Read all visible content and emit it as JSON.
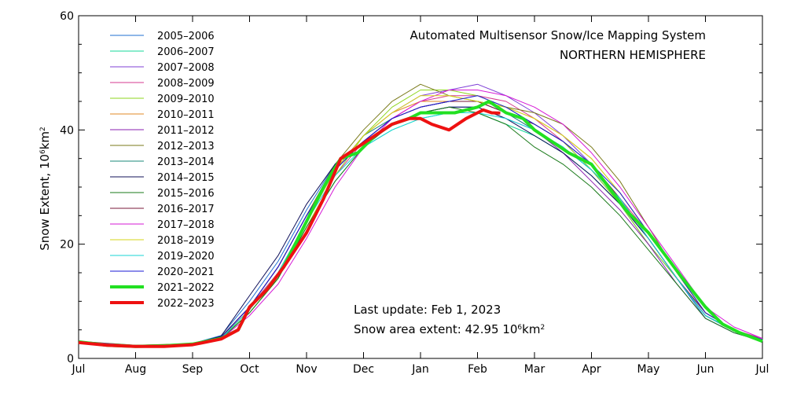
{
  "chart_data": {
    "type": "line",
    "title": "Automated  Multisensor Snow/Ice Mapping System",
    "subtitle": "NORTHERN HEMISPHERE",
    "ylabel_main": "Snow Extent, 10",
    "ylabel_sup": "6",
    "ylabel_unit": "km",
    "ylabel_unit_sup": "2",
    "ylim": [
      0,
      60
    ],
    "yticks": [
      0,
      20,
      40,
      60
    ],
    "xlim": [
      0,
      12
    ],
    "xtick_labels": [
      "Jul",
      "Aug",
      "Sep",
      "Oct",
      "Nov",
      "Dec",
      "Jan",
      "Feb",
      "Mar",
      "Apr",
      "May",
      "Jun",
      "Jul"
    ],
    "grid": false,
    "legend_placement": "top-left",
    "annotation_update": "Last update: Feb  1, 2023",
    "annotation_extent_prefix": "Snow area extent: 42.95 10",
    "annotation_extent_sup": "6",
    "annotation_extent_unit": "km",
    "annotation_extent_unit_sup": "2",
    "x_units": "months since Jul",
    "series": [
      {
        "name": "2005–2006",
        "color": "#1f6fd1",
        "width": 1,
        "x": [
          0,
          1,
          2,
          2.5,
          3,
          3.5,
          4,
          4.5,
          5,
          5.5,
          6,
          6.5,
          7,
          7.5,
          8,
          8.5,
          9,
          9.5,
          10,
          10.5,
          11,
          11.5,
          12
        ],
        "y": [
          2.8,
          2.2,
          2.6,
          4,
          10,
          17,
          26,
          34,
          38,
          41,
          43,
          44,
          44,
          42,
          40,
          37,
          33,
          27,
          20,
          14,
          7,
          4.5,
          3
        ]
      },
      {
        "name": "2006–2007",
        "color": "#16d89a",
        "width": 1,
        "x": [
          0,
          1,
          2,
          2.5,
          3,
          3.5,
          4,
          4.5,
          5,
          5.5,
          6,
          6.5,
          7,
          7.5,
          8,
          8.5,
          9,
          9.5,
          10,
          10.5,
          11,
          11.5,
          12
        ],
        "y": [
          3,
          2.3,
          2.5,
          3.5,
          8,
          14,
          23,
          31,
          37,
          40,
          42,
          43,
          43,
          41,
          39,
          36,
          32,
          27,
          21,
          14,
          7.5,
          5,
          3.2
        ]
      },
      {
        "name": "2007–2008",
        "color": "#7f3fd6",
        "width": 1,
        "x": [
          0,
          1,
          2,
          2.5,
          3,
          3.5,
          4,
          4.5,
          5,
          5.5,
          6,
          6.5,
          7,
          7.5,
          8,
          8.5,
          9,
          9.5,
          10,
          10.5,
          11,
          11.5,
          12
        ],
        "y": [
          2.9,
          2.2,
          2.4,
          3.6,
          9,
          16,
          25,
          33,
          39,
          43,
          46,
          47,
          48,
          46,
          43,
          39,
          34,
          28,
          21,
          14,
          8,
          5,
          3.3
        ]
      },
      {
        "name": "2008–2009",
        "color": "#d6388f",
        "width": 1,
        "x": [
          0,
          1,
          2,
          2.5,
          3,
          3.5,
          4,
          4.5,
          5,
          5.5,
          6,
          6.5,
          7,
          7.5,
          8,
          8.5,
          9,
          9.5,
          10,
          10.5,
          11,
          11.5,
          12
        ],
        "y": [
          3,
          2.2,
          2.5,
          3.8,
          9,
          15,
          24,
          32,
          38,
          42,
          45,
          46,
          46,
          45,
          42,
          38,
          33,
          28,
          22,
          15,
          8,
          5,
          3.5
        ]
      },
      {
        "name": "2009–2010",
        "color": "#8ed61d",
        "width": 1,
        "x": [
          0,
          1,
          2,
          2.5,
          3,
          3.5,
          4,
          4.5,
          5,
          5.5,
          6,
          6.5,
          7,
          7.5,
          8,
          8.5,
          9,
          9.5,
          10,
          10.5,
          11,
          11.5,
          12
        ],
        "y": [
          2.8,
          2.1,
          2.4,
          3.5,
          8,
          14,
          23,
          32,
          39,
          44,
          47,
          47,
          46,
          44,
          41,
          38,
          33,
          27,
          20,
          14,
          7.5,
          4.8,
          3
        ]
      },
      {
        "name": "2010–2011",
        "color": "#e08a26",
        "width": 1,
        "x": [
          0,
          1,
          2,
          2.5,
          3,
          3.5,
          4,
          4.5,
          5,
          5.5,
          6,
          6.5,
          7,
          7.5,
          8,
          8.5,
          9,
          9.5,
          10,
          10.5,
          11,
          11.5,
          12
        ],
        "y": [
          3,
          2.2,
          2.5,
          3.6,
          8.5,
          15,
          24,
          33,
          39,
          43,
          45,
          45,
          45,
          44,
          42,
          39,
          35,
          29,
          22,
          15,
          8,
          5,
          3.2
        ]
      },
      {
        "name": "2011–2012",
        "color": "#8a1fb0",
        "width": 1,
        "x": [
          0,
          1,
          2,
          2.5,
          3,
          3.5,
          4,
          4.5,
          5,
          5.5,
          6,
          6.5,
          7,
          7.5,
          8,
          8.5,
          9,
          9.5,
          10,
          10.5,
          11,
          11.5,
          12
        ],
        "y": [
          2.9,
          2.2,
          2.5,
          3.7,
          9,
          16,
          25,
          33,
          38,
          42,
          44,
          45,
          45,
          43,
          40,
          36,
          31,
          26,
          20,
          13,
          7,
          4.5,
          3
        ]
      },
      {
        "name": "2012–2013",
        "color": "#7a7a1a",
        "width": 1,
        "x": [
          0,
          1,
          2,
          2.5,
          3,
          3.5,
          4,
          4.5,
          5,
          5.5,
          6,
          6.5,
          7,
          7.5,
          8,
          8.5,
          9,
          9.5,
          10,
          10.5,
          11,
          11.5,
          12
        ],
        "y": [
          3,
          2.3,
          2.6,
          3.8,
          9,
          16,
          25,
          34,
          40,
          45,
          48,
          46,
          45,
          44,
          43,
          41,
          37,
          31,
          23,
          15,
          8,
          5,
          3.3
        ]
      },
      {
        "name": "2013–2014",
        "color": "#1a8a7a",
        "width": 1,
        "x": [
          0,
          1,
          2,
          2.5,
          3,
          3.5,
          4,
          4.5,
          5,
          5.5,
          6,
          6.5,
          7,
          7.5,
          8,
          8.5,
          9,
          9.5,
          10,
          10.5,
          11,
          11.5,
          12
        ],
        "y": [
          2.8,
          2.1,
          2.4,
          3.5,
          8.5,
          15,
          24,
          33,
          39,
          42,
          44,
          45,
          45,
          43,
          40,
          37,
          33,
          28,
          21,
          14,
          7.5,
          4.8,
          3
        ]
      },
      {
        "name": "2014–2015",
        "color": "#10105a",
        "width": 1,
        "x": [
          0,
          1,
          2,
          2.5,
          3,
          3.5,
          4,
          4.5,
          5,
          5.5,
          6,
          6.5,
          7,
          7.5,
          8,
          8.5,
          9,
          9.5,
          10,
          10.5,
          11,
          11.5,
          12
        ],
        "y": [
          2.9,
          2.2,
          2.5,
          3.9,
          11,
          18,
          27,
          34,
          38,
          41,
          43,
          44,
          44,
          42,
          39,
          36,
          32,
          27,
          21,
          14,
          7.5,
          4.8,
          3.2
        ]
      },
      {
        "name": "2015–2016",
        "color": "#1a7a1a",
        "width": 1,
        "x": [
          0,
          1,
          2,
          2.5,
          3,
          3.5,
          4,
          4.5,
          5,
          5.5,
          6,
          6.5,
          7,
          7.5,
          8,
          8.5,
          9,
          9.5,
          10,
          10.5,
          11,
          11.5,
          12
        ],
        "y": [
          2.8,
          2.1,
          2.4,
          3.4,
          8,
          14,
          23,
          31,
          37,
          41,
          43,
          44,
          43,
          41,
          37,
          34,
          30,
          25,
          19,
          13,
          7,
          4.5,
          3
        ]
      },
      {
        "name": "2016–2017",
        "color": "#7a1a3a",
        "width": 1,
        "x": [
          0,
          1,
          2,
          2.5,
          3,
          3.5,
          4,
          4.5,
          5,
          5.5,
          6,
          6.5,
          7,
          7.5,
          8,
          8.5,
          9,
          9.5,
          10,
          10.5,
          11,
          11.5,
          12
        ],
        "y": [
          3,
          2.2,
          2.5,
          3.7,
          9,
          16,
          25,
          33,
          38,
          42,
          44,
          45,
          45,
          43,
          41,
          38,
          34,
          28,
          21,
          14,
          8,
          5,
          3.2
        ]
      },
      {
        "name": "2017–2018",
        "color": "#d61ad6",
        "width": 1,
        "x": [
          0,
          1,
          2,
          2.5,
          3,
          3.5,
          4,
          4.5,
          5,
          5.5,
          6,
          6.5,
          7,
          7.5,
          8,
          8.5,
          9,
          9.5,
          10,
          10.5,
          11,
          11.5,
          12
        ],
        "y": [
          3,
          2.2,
          2.4,
          3.4,
          7.5,
          13,
          21,
          30,
          37,
          42,
          45,
          47,
          47,
          46,
          44,
          41,
          36,
          30,
          23,
          16,
          9,
          5.5,
          3.5
        ]
      },
      {
        "name": "2018–2019",
        "color": "#d6d61a",
        "width": 1,
        "x": [
          0,
          1,
          2,
          2.5,
          3,
          3.5,
          4,
          4.5,
          5,
          5.5,
          6,
          6.5,
          7,
          7.5,
          8,
          8.5,
          9,
          9.5,
          10,
          10.5,
          11,
          11.5,
          12
        ],
        "y": [
          2.9,
          2.2,
          2.5,
          3.6,
          8.5,
          15,
          24,
          33,
          39,
          43,
          46,
          46,
          45,
          44,
          42,
          39,
          35,
          29,
          22,
          15,
          8,
          5,
          3.2
        ]
      },
      {
        "name": "2019–2020",
        "color": "#1ad6d6",
        "width": 1,
        "x": [
          0,
          1,
          2,
          2.5,
          3,
          3.5,
          4,
          4.5,
          5,
          5.5,
          6,
          6.5,
          7,
          7.5,
          8,
          8.5,
          9,
          9.5,
          10,
          10.5,
          11,
          11.5,
          12
        ],
        "y": [
          2.8,
          2.1,
          2.4,
          3.5,
          8.5,
          15,
          24,
          32,
          37,
          40,
          42,
          43,
          43,
          42,
          40,
          37,
          33,
          28,
          21,
          14,
          7.5,
          4.8,
          3
        ]
      },
      {
        "name": "2020–2021",
        "color": "#1a1ad6",
        "width": 1,
        "x": [
          0,
          1,
          2,
          2.5,
          3,
          3.5,
          4,
          4.5,
          5,
          5.5,
          6,
          6.5,
          7,
          7.5,
          8,
          8.5,
          9,
          9.5,
          10,
          10.5,
          11,
          11.5,
          12
        ],
        "y": [
          2.9,
          2.2,
          2.5,
          3.7,
          9,
          16,
          25,
          33,
          38,
          42,
          44,
          45,
          46,
          44,
          41,
          38,
          34,
          29,
          22,
          15,
          8,
          5,
          3.3
        ]
      },
      {
        "name": "2021–2022",
        "color": "#22e022",
        "width": 4,
        "x": [
          0,
          0.5,
          1,
          1.5,
          2,
          2.5,
          2.8,
          3,
          3.3,
          3.6,
          4,
          4.3,
          4.6,
          4.9,
          5.2,
          5.5,
          5.8,
          6,
          6.3,
          6.6,
          7,
          7.2,
          7.5,
          7.8,
          8,
          8.3,
          8.6,
          9,
          9.3,
          9.6,
          10,
          10.3,
          10.6,
          11,
          11.3,
          11.6,
          12
        ],
        "y": [
          2.9,
          2.3,
          2.1,
          2.2,
          2.5,
          3.5,
          5,
          9,
          12,
          16,
          24,
          30,
          35,
          36,
          39,
          41,
          42,
          43,
          43,
          43,
          44,
          45,
          43,
          42,
          40,
          38,
          36,
          34,
          30,
          26,
          22,
          18,
          14,
          9,
          6,
          4.5,
          3
        ]
      },
      {
        "name": "2022–2023",
        "color": "#ee1111",
        "width": 4,
        "x": [
          0,
          0.5,
          1,
          1.5,
          2,
          2.5,
          2.8,
          3,
          3.3,
          3.6,
          4,
          4.3,
          4.6,
          4.9,
          5.2,
          5.5,
          5.8,
          6,
          6.2,
          6.5,
          6.8,
          7,
          7.1,
          7.25,
          7.4
        ],
        "y": [
          2.8,
          2.3,
          2.1,
          2.1,
          2.4,
          3.4,
          5,
          9,
          12,
          16,
          22,
          28,
          35,
          37,
          39,
          41,
          42,
          42,
          41,
          40,
          42,
          43,
          43.5,
          43,
          42.95
        ]
      }
    ]
  }
}
